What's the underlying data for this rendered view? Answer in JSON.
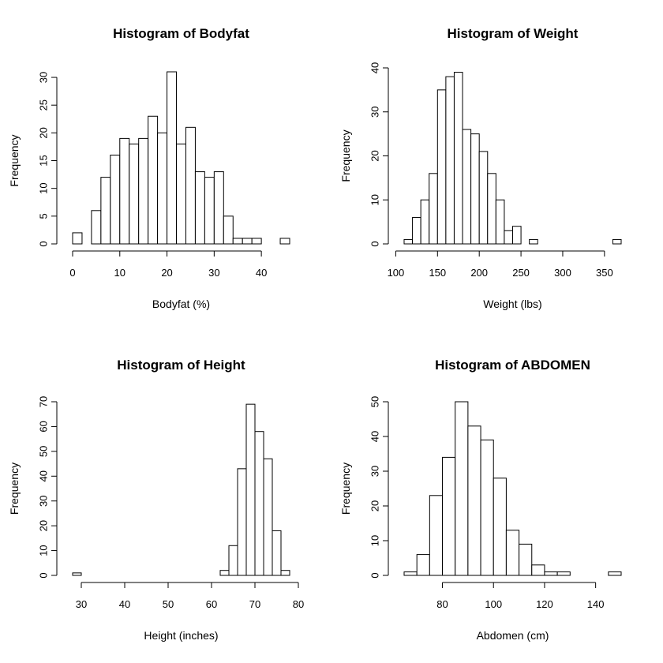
{
  "chart_data": [
    {
      "type": "bar",
      "title": "Histogram of Bodyfat",
      "xlabel": "Bodyfat (%)",
      "ylabel": "Frequency",
      "xlim": [
        0,
        46
      ],
      "ylim": [
        0,
        31
      ],
      "bin_width": 2,
      "bins_start": 0,
      "values": [
        2,
        0,
        6,
        12,
        16,
        19,
        18,
        19,
        23,
        20,
        31,
        18,
        21,
        13,
        12,
        13,
        5,
        1,
        1,
        1,
        0,
        0,
        1
      ],
      "xticks": [
        0,
        10,
        20,
        30,
        40
      ],
      "yticks": [
        0,
        5,
        10,
        15,
        20,
        25,
        30
      ]
    },
    {
      "type": "bar",
      "title": "Histogram of Weight",
      "xlabel": "Weight (lbs)",
      "ylabel": "Frequency",
      "xlim": [
        110,
        370
      ],
      "ylim": [
        0,
        40
      ],
      "bin_width": 10,
      "bins_start": 110,
      "values": [
        1,
        6,
        10,
        16,
        35,
        38,
        39,
        26,
        25,
        21,
        16,
        10,
        3,
        4,
        0,
        1,
        0,
        0,
        0,
        0,
        0,
        0,
        0,
        0,
        0,
        1
      ],
      "xticks": [
        100,
        150,
        200,
        250,
        300,
        350
      ],
      "yticks": [
        0,
        10,
        20,
        30,
        40
      ]
    },
    {
      "type": "bar",
      "title": "Histogram of Height",
      "xlabel": "Height (inches)",
      "ylabel": "Frequency",
      "xlim": [
        28,
        78
      ],
      "ylim": [
        0,
        70
      ],
      "bin_width": 2,
      "bins_start": 28,
      "values": [
        1,
        0,
        0,
        0,
        0,
        0,
        0,
        0,
        0,
        0,
        0,
        0,
        0,
        0,
        0,
        0,
        0,
        2,
        12,
        43,
        69,
        58,
        47,
        18,
        2
      ],
      "xticks": [
        30,
        40,
        50,
        60,
        70,
        80
      ],
      "yticks": [
        0,
        10,
        20,
        30,
        40,
        50,
        60,
        70
      ]
    },
    {
      "type": "bar",
      "title": "Histogram of ABDOMEN",
      "xlabel": "Abdomen (cm)",
      "ylabel": "Frequency",
      "xlim": [
        65,
        150
      ],
      "ylim": [
        0,
        50
      ],
      "bin_width": 5,
      "bins_start": 65,
      "values": [
        1,
        6,
        23,
        34,
        50,
        43,
        39,
        28,
        13,
        9,
        3,
        1,
        1,
        0,
        0,
        0,
        1
      ],
      "xticks": [
        80,
        100,
        120,
        140
      ],
      "yticks": [
        0,
        10,
        20,
        30,
        40,
        50
      ]
    }
  ]
}
